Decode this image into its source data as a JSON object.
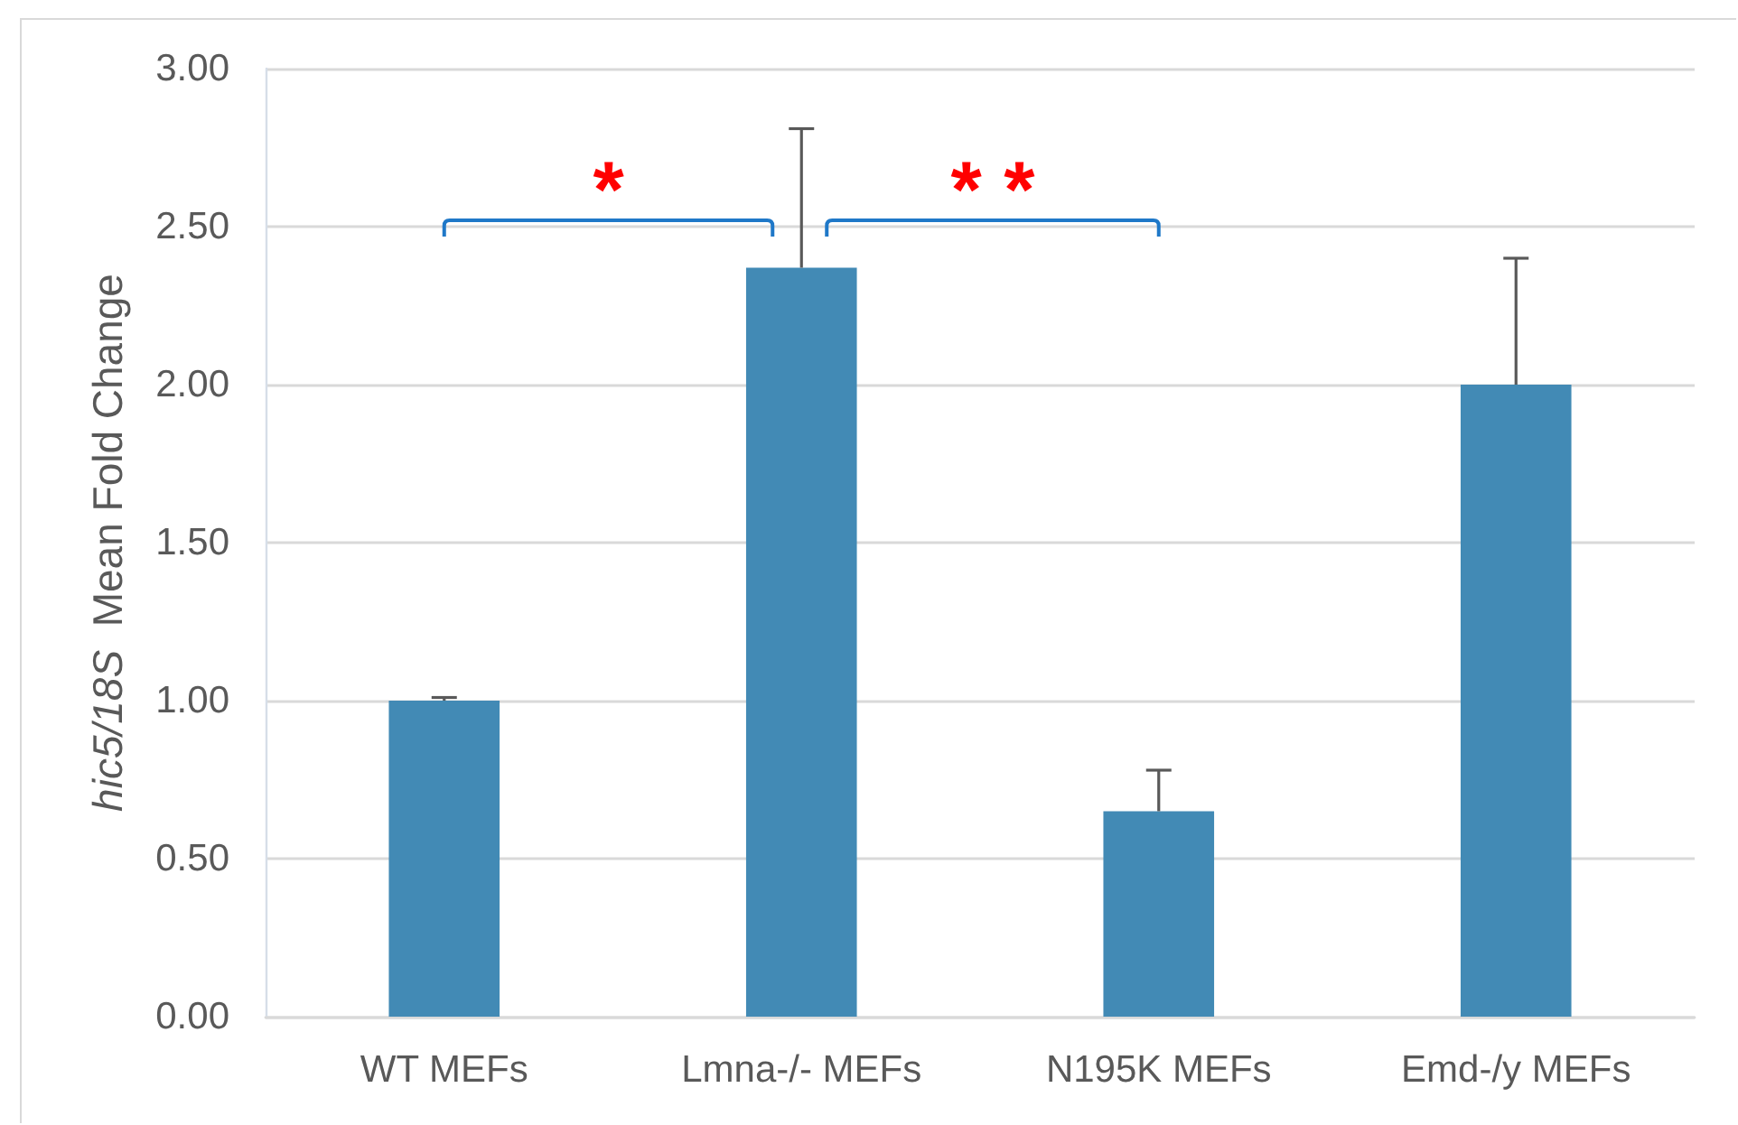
{
  "chart_data": {
    "type": "bar",
    "ylabel": "hic5/18S  Mean Fold Change",
    "categories": [
      "WT MEFs",
      "Lmna-/- MEFs",
      "N195K MEFs",
      "Emd-/y MEFs"
    ],
    "values": [
      1.0,
      2.37,
      0.65,
      2.0
    ],
    "color": "#428ab5",
    "errors": [
      [
        1.0,
        1.01
      ],
      [
        2.37,
        2.81
      ],
      [
        0.65,
        0.78
      ],
      [
        2.0,
        2.4
      ]
    ],
    "ylim": [
      0,
      3
    ],
    "yticks": [
      {
        "value": 0,
        "label": "0.00"
      },
      {
        "value": 0.5,
        "label": "0.50"
      },
      {
        "value": 1,
        "label": "1.00"
      },
      {
        "value": 1.5,
        "label": "1.50"
      },
      {
        "value": 2,
        "label": "2.00"
      },
      {
        "value": 2.5,
        "label": "2.50"
      },
      {
        "value": 3,
        "label": "3.00"
      }
    ],
    "grid": "y",
    "annotations": [
      "*",
      "* *"
    ]
  }
}
